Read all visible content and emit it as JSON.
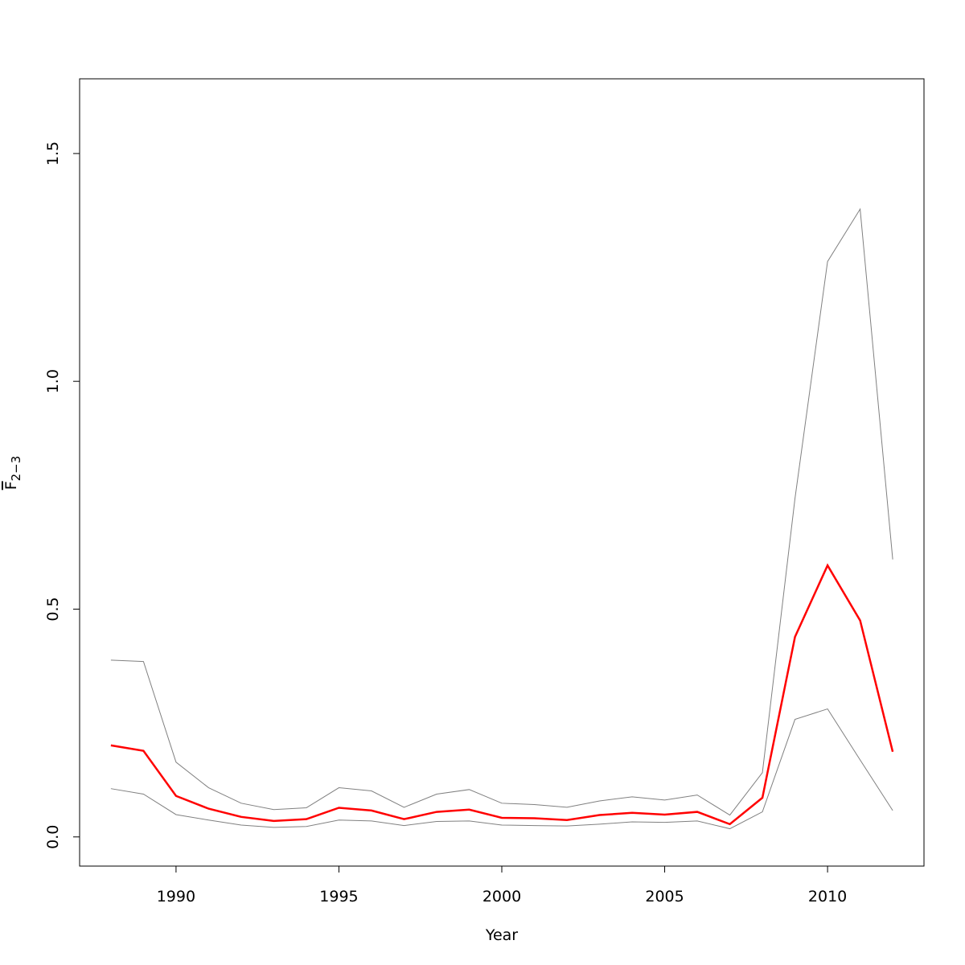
{
  "chart_data": {
    "type": "line",
    "x_label": "Year",
    "y_label": "F",
    "y_label_sub": "2−3",
    "x": [
      1988,
      1989,
      1990,
      1991,
      1992,
      1993,
      1994,
      1995,
      1996,
      1997,
      1998,
      1999,
      2000,
      2001,
      2002,
      2003,
      2004,
      2005,
      2006,
      2007,
      2008,
      2009,
      2010,
      2011,
      2012
    ],
    "series": [
      {
        "color": "#808080",
        "width": 1,
        "values": [
          0.388,
          0.385,
          0.164,
          0.108,
          0.074,
          0.06,
          0.064,
          0.108,
          0.101,
          0.065,
          0.094,
          0.104,
          0.074,
          0.071,
          0.065,
          0.079,
          0.088,
          0.081,
          0.092,
          0.048,
          0.141,
          0.743,
          1.263,
          1.378,
          0.609
        ]
      },
      {
        "color": "#808080",
        "width": 1,
        "values": [
          0.106,
          0.094,
          0.049,
          0.037,
          0.026,
          0.021,
          0.023,
          0.037,
          0.035,
          0.025,
          0.034,
          0.035,
          0.026,
          0.025,
          0.024,
          0.028,
          0.033,
          0.032,
          0.035,
          0.018,
          0.055,
          0.258,
          0.281,
          0.169,
          0.058
        ]
      },
      {
        "color": "#ff0000",
        "width": 2.5,
        "values": [
          0.201,
          0.189,
          0.09,
          0.062,
          0.044,
          0.035,
          0.039,
          0.064,
          0.058,
          0.039,
          0.055,
          0.06,
          0.042,
          0.041,
          0.037,
          0.048,
          0.053,
          0.049,
          0.055,
          0.028,
          0.086,
          0.439,
          0.596,
          0.475,
          0.187
        ]
      }
    ],
    "xlim": [
      1987.04,
      2012.96
    ],
    "xticks": [
      1990,
      1995,
      2000,
      2005,
      2010
    ],
    "ylim": [
      -0.064,
      1.664
    ],
    "yticks": [
      {
        "value": 0,
        "label": "0.0"
      },
      {
        "value": 0.5,
        "label": "0.5"
      },
      {
        "value": 1,
        "label": "1.0"
      },
      {
        "value": 1.5,
        "label": "1.5"
      }
    ]
  }
}
